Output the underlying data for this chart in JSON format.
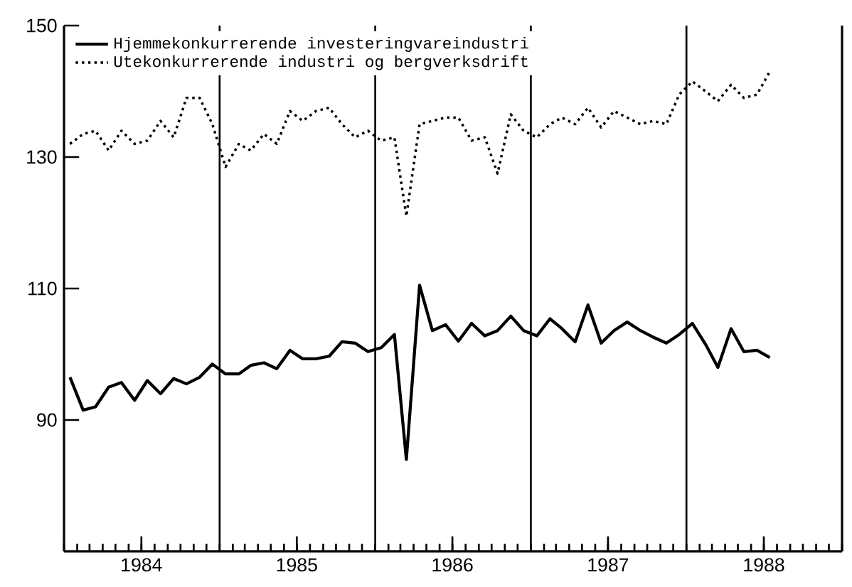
{
  "chart_data": {
    "type": "line",
    "x": [
      "1984-01-15",
      "1984-02-15",
      "1984-03-15",
      "1984-04-15",
      "1984-05-15",
      "1984-06-15",
      "1984-07-15",
      "1984-08-15",
      "1984-09-15",
      "1984-10-15",
      "1984-11-15",
      "1984-12-15",
      "1985-01-15",
      "1985-02-15",
      "1985-03-15",
      "1985-04-15",
      "1985-05-15",
      "1985-06-15",
      "1985-07-15",
      "1985-08-15",
      "1985-09-15",
      "1985-10-15",
      "1985-11-15",
      "1985-12-15",
      "1986-01-15",
      "1986-02-15",
      "1986-03-15",
      "1986-04-15",
      "1986-05-15",
      "1986-06-15",
      "1986-07-15",
      "1986-08-15",
      "1986-09-15",
      "1986-10-15",
      "1986-11-15",
      "1986-12-15",
      "1987-01-15",
      "1987-02-15",
      "1987-03-15",
      "1987-04-15",
      "1987-05-15",
      "1987-06-15",
      "1987-07-15",
      "1987-08-15",
      "1987-09-15",
      "1987-10-15",
      "1987-11-15",
      "1987-12-15",
      "1988-01-15",
      "1988-02-15",
      "1988-03-15",
      "1988-04-15",
      "1988-05-15",
      "1988-06-15",
      "1988-07-15"
    ],
    "series": [
      {
        "name": "Hjemmekonkurrerende investeringvareindustri",
        "color": "#000000",
        "line_style": "solid",
        "values": [
          96.5,
          91.5,
          92,
          95,
          95.7,
          93,
          96,
          94,
          96.3,
          95.5,
          96.5,
          98.5,
          97,
          97,
          98.3,
          98.7,
          97.8,
          100.6,
          99.3,
          99.3,
          99.7,
          101.9,
          101.7,
          100.4,
          101,
          103,
          84,
          110.5,
          103.6,
          104.5,
          102,
          104.7,
          102.8,
          103.6,
          105.8,
          103.6,
          102.8,
          105.4,
          103.9,
          101.9,
          107.5,
          101.7,
          103.6,
          104.9,
          103.6,
          102.6,
          101.7,
          103,
          104.7,
          101.5,
          98,
          103.9,
          100.4,
          100.6,
          99.5
        ]
      },
      {
        "name": "Utekonkurrerende industri og bergverksdrift",
        "color": "#000000",
        "line_style": "dotted",
        "values": [
          132,
          133.5,
          134,
          131,
          134,
          132,
          132.5,
          135.5,
          133,
          139,
          139,
          135,
          128.5,
          132,
          131,
          133.5,
          132,
          137,
          135.5,
          137,
          137.5,
          135,
          133,
          134,
          132.5,
          133,
          121,
          135,
          135.5,
          136,
          136,
          132.5,
          133,
          127.5,
          136.5,
          134,
          133,
          135,
          136,
          135,
          137.5,
          134.5,
          137,
          136,
          135,
          135.5,
          135,
          139.5,
          141.5,
          140,
          138.5,
          141,
          139,
          139.5,
          143
        ]
      }
    ],
    "xlim": [
      "1984-01-01",
      "1989-01-01"
    ],
    "xticks": [
      {
        "value": "1984-07-01",
        "label": "1984"
      },
      {
        "value": "1985-07-01",
        "label": "1985"
      },
      {
        "value": "1986-07-01",
        "label": "1986"
      },
      {
        "value": "1987-07-01",
        "label": "1987"
      },
      {
        "value": "1988-07-01",
        "label": "1988"
      }
    ],
    "ylim": [
      70,
      150
    ],
    "yticks": [
      90,
      110,
      130,
      150
    ],
    "ref_lines": [
      {
        "axis": "x",
        "value": "1985-01-01",
        "color": "#000000"
      },
      {
        "axis": "x",
        "value": "1986-01-01",
        "color": "#000000"
      },
      {
        "axis": "x",
        "value": "1987-01-01",
        "color": "#000000"
      },
      {
        "axis": "x",
        "value": "1988-01-01",
        "color": "#000000"
      }
    ],
    "legend": "top left",
    "grid": false,
    "marker": "none"
  }
}
